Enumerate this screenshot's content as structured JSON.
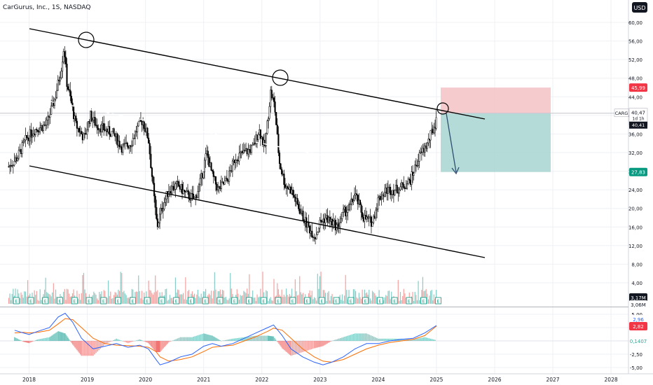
{
  "header": {
    "title": "CarGurus, Inc., 1S, NASDAQ",
    "currency": "USD"
  },
  "colors": {
    "up": "#26a69a",
    "down": "#ef5350",
    "candle": "#000000",
    "grid": "#eef0f4",
    "axis_text": "#131722",
    "stop_zone": "#f4c2c6",
    "target_zone": "#a8d5d1",
    "macd_line": "#2962ff",
    "signal_line": "#ff6d00",
    "price_tag_bg": "#ffffff",
    "last_price_bg": "#131722",
    "stop_tag": "#f23645",
    "target_tag": "#089981"
  },
  "icons": {
    "earnings": "earnings-marker-icon"
  },
  "chart_data": [
    {
      "type": "candlestick",
      "x_ticks": [
        "2018",
        "2019",
        "2020",
        "2021",
        "2022",
        "2023",
        "2024",
        "2025",
        "2026",
        "2027",
        "2028"
      ],
      "y_ticks": [
        "60,00",
        "56,00",
        "52,00",
        "48,00",
        "44,00",
        "40,00",
        "36,00",
        "32,00",
        "28,00",
        "24,00",
        "20,00",
        "16,00",
        "12,00",
        "8,00",
        "4,00"
      ],
      "ylim": [
        0,
        62
      ],
      "x_range": [
        2017.5,
        2028.3
      ],
      "series": [
        {
          "kind": "close_trajectory",
          "x": [
            2017.65,
            2017.8,
            2017.95,
            2018.1,
            2018.3,
            2018.45,
            2018.55,
            2018.6,
            2018.65,
            2018.72,
            2018.8,
            2018.95,
            2019.05,
            2019.15,
            2019.3,
            2019.45,
            2019.6,
            2019.75,
            2019.85,
            2019.95,
            2020.05,
            2020.15,
            2020.2,
            2020.28,
            2020.4,
            2020.55,
            2020.7,
            2020.85,
            2020.95,
            2021.05,
            2021.15,
            2021.25,
            2021.4,
            2021.55,
            2021.7,
            2021.85,
            2021.95,
            2022.05,
            2022.15,
            2022.22,
            2022.3,
            2022.4,
            2022.5,
            2022.6,
            2022.75,
            2022.85,
            2022.92,
            2023.0,
            2023.1,
            2023.2,
            2023.3,
            2023.4,
            2023.5,
            2023.6,
            2023.75,
            2023.9,
            2024.0,
            2024.15,
            2024.3,
            2024.45,
            2024.55,
            2024.7,
            2024.85,
            2025.0
          ],
          "close": [
            29,
            31,
            35,
            37,
            38,
            44,
            50,
            55,
            47,
            43,
            38,
            35,
            40,
            38,
            37,
            36,
            33,
            34,
            37,
            39,
            35,
            22,
            16,
            20,
            24,
            25,
            23,
            22,
            26,
            32,
            27,
            24,
            26,
            31,
            32,
            33,
            37,
            33,
            45,
            42,
            30,
            25,
            24,
            21,
            17,
            15,
            14,
            17,
            18,
            17,
            16,
            19,
            20,
            23,
            18,
            17,
            22,
            24,
            24,
            25,
            26,
            31,
            34,
            39
          ]
        },
        {
          "kind": "last_price",
          "name": "CARG",
          "value": "40,47",
          "countdown": "1d 1h",
          "sub_value": "40,41"
        }
      ],
      "levels": {
        "stop": "45,99",
        "target": "27,83"
      },
      "annotations": [
        "upper channel line",
        "lower channel line",
        "dashed mid line",
        "circle markers at 2018 high, 2022 high, 2025 touch",
        "projection arrow"
      ]
    },
    {
      "type": "bar",
      "name": "volume",
      "labels": [
        "3,17M",
        "3,06M"
      ],
      "note": "volume histogram behind price"
    },
    {
      "type": "line",
      "name": "macd",
      "y_ticks": [
        "5,00",
        "2,50",
        "-2,50",
        "-5,00"
      ],
      "ylim": [
        -6,
        6
      ],
      "labels": [
        "2,96",
        "2,82",
        "0,1407"
      ],
      "x": [
        2017.75,
        2017.9,
        2018.0,
        2018.15,
        2018.35,
        2018.5,
        2018.62,
        2018.75,
        2018.9,
        2019.1,
        2019.3,
        2019.5,
        2019.7,
        2019.9,
        2020.05,
        2020.18,
        2020.25,
        2020.4,
        2020.6,
        2020.8,
        2021.0,
        2021.15,
        2021.3,
        2021.5,
        2021.7,
        2021.9,
        2022.1,
        2022.2,
        2022.35,
        2022.5,
        2022.7,
        2022.9,
        2023.05,
        2023.2,
        2023.4,
        2023.6,
        2023.8,
        2024.0,
        2024.2,
        2024.4,
        2024.6,
        2024.8,
        2025.0
      ],
      "macd": [
        2.0,
        1.5,
        1.2,
        1.8,
        2.5,
        4.5,
        5.2,
        3.5,
        0.5,
        -1.5,
        -1.0,
        -0.5,
        -1.2,
        -0.8,
        -1.5,
        -3.5,
        -4.5,
        -4.0,
        -3.0,
        -2.5,
        -1.0,
        -0.5,
        -1.0,
        -0.5,
        0.5,
        1.5,
        2.5,
        3.0,
        1.0,
        -1.5,
        -3.0,
        -4.0,
        -4.5,
        -4.0,
        -3.0,
        -1.5,
        -0.5,
        -0.5,
        0.0,
        0.3,
        0.5,
        1.5,
        2.9
      ],
      "signal": [
        1.5,
        1.6,
        1.5,
        1.6,
        2.0,
        3.2,
        4.2,
        4.0,
        2.5,
        0.5,
        -0.5,
        -0.8,
        -0.9,
        -1.0,
        -1.2,
        -2.0,
        -3.0,
        -3.8,
        -3.5,
        -3.0,
        -2.0,
        -1.2,
        -1.0,
        -0.8,
        0.0,
        0.8,
        1.8,
        2.4,
        2.0,
        0.5,
        -1.5,
        -3.0,
        -3.8,
        -4.0,
        -3.5,
        -2.5,
        -1.5,
        -0.8,
        -0.3,
        0.0,
        0.3,
        1.0,
        2.8
      ]
    }
  ]
}
